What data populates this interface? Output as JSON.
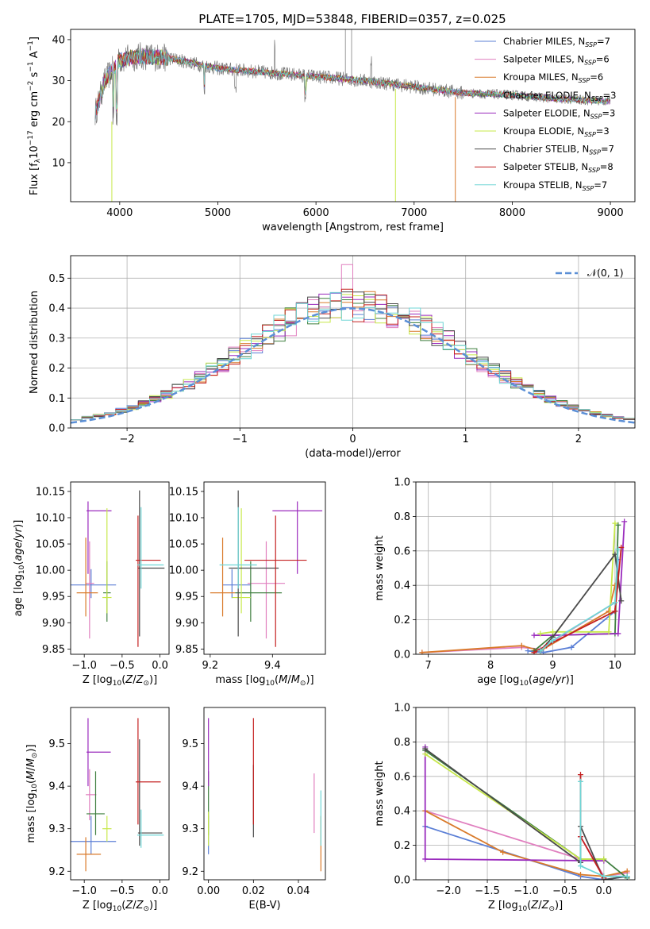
{
  "figure": {
    "title": "PLATE=1705, MJD=53848, FIBERID=0357, z=0.025"
  },
  "colors": {
    "Chabrier MILES": "#5b7fd6",
    "Salpeter MILES": "#e07fbf",
    "Kroupa MILES": "#d97a2a",
    "Chabrier ELODIE": "#3f7f3f",
    "Salpeter ELODIE": "#9a2bbd",
    "Kroupa ELODIE": "#c7e84a",
    "Chabrier STELIB": "#4a4a4a",
    "Salpeter STELIB": "#c42020",
    "Kroupa STELIB": "#6fd6d6",
    "Normal": "#5b8fd6",
    "grid": "#b0b0b0"
  },
  "chart_data": [
    {
      "id": "spectrum",
      "type": "line",
      "title": "PLATE=1705, MJD=53848, FIBERID=0357, z=0.025",
      "xlabel": "wavelength [Angstrom, rest frame]",
      "ylabel": "Flux [f_λ 10^-17 erg cm^-2 s^-1 A^-1]",
      "xlim": [
        3500,
        9250
      ],
      "ylim": [
        0.5,
        42.5
      ],
      "xticks": [
        4000,
        5000,
        6000,
        7000,
        8000,
        9000
      ],
      "yticks": [
        10,
        20,
        30,
        40
      ],
      "grid": false,
      "legend": "top-right",
      "legend_entries": [
        {
          "base": "Chabrier MILES, N",
          "sub": "SSP",
          "tail": "=7"
        },
        {
          "base": "Salpeter MILES, N",
          "sub": "SSP",
          "tail": "=6"
        },
        {
          "base": "Kroupa MILES, N",
          "sub": "SSP",
          "tail": "=6"
        },
        {
          "base": "Chabrier ELODIE, N",
          "sub": "SSP",
          "tail": "=3"
        },
        {
          "base": "Salpeter ELODIE, N",
          "sub": "SSP",
          "tail": "=3"
        },
        {
          "base": "Kroupa ELODIE, N",
          "sub": "SSP",
          "tail": "=3"
        },
        {
          "base": "Chabrier STELIB, N",
          "sub": "SSP",
          "tail": "=7"
        },
        {
          "base": "Salpeter STELIB, N",
          "sub": "SSP",
          "tail": "=8"
        },
        {
          "base": "Kroupa STELIB, N",
          "sub": "SSP",
          "tail": "=7"
        }
      ],
      "continuum": [
        [
          3750,
          22
        ],
        [
          3850,
          30
        ],
        [
          4000,
          35
        ],
        [
          4200,
          36
        ],
        [
          4500,
          35.5
        ],
        [
          5000,
          33
        ],
        [
          5500,
          32
        ],
        [
          6000,
          31
        ],
        [
          6500,
          30
        ],
        [
          7000,
          28.5
        ],
        [
          7500,
          27
        ],
        [
          8000,
          26.5
        ],
        [
          8500,
          25.5
        ],
        [
          9000,
          25
        ]
      ]
    },
    {
      "id": "residuals",
      "type": "step",
      "xlabel": "(data-model)/error",
      "ylabel": "Normed distribution",
      "xlim": [
        -2.5,
        2.5
      ],
      "ylim": [
        0,
        0.575
      ],
      "xticks": [
        -2,
        -1,
        0,
        1,
        2
      ],
      "yticks": [
        0.0,
        0.1,
        0.2,
        0.3,
        0.4,
        0.5
      ],
      "grid": true,
      "legend": "top-right",
      "legend_label": "𝒩(0, 1)",
      "bin_width": 0.1
    },
    {
      "id": "age_vs_Z",
      "type": "errorbar",
      "xlabel": "Z [log10(Z/Z☉)]",
      "ylabel": "age [log10(age/yr)]",
      "xlim": [
        -1.18,
        0.12
      ],
      "ylim": [
        9.84,
        10.168
      ],
      "xticks": [
        -1.0,
        -0.5,
        0.0
      ],
      "yticks": [
        9.85,
        9.9,
        9.95,
        10.0,
        10.05,
        10.1,
        10.15
      ],
      "points": [
        {
          "series": "Chabrier MILES",
          "x": -0.91,
          "y": 9.972,
          "xerr": [
            0.3,
            0.33
          ],
          "yerr": [
            0.025,
            0.03
          ]
        },
        {
          "series": "Salpeter MILES",
          "x": -0.93,
          "y": 9.975,
          "xerr": [
            0.05,
            0.06
          ],
          "yerr": [
            0.105,
            0.08
          ]
        },
        {
          "series": "Kroupa MILES",
          "x": -0.98,
          "y": 9.957,
          "xerr": [
            0.12,
            0.16
          ],
          "yerr": [
            0.045,
            0.105
          ]
        },
        {
          "series": "Chabrier ELODIE",
          "x": -0.7,
          "y": 9.957,
          "xerr": [
            0.05,
            0.05
          ],
          "yerr": [
            0.055,
            0.06
          ]
        },
        {
          "series": "Salpeter ELODIE",
          "x": -0.95,
          "y": 10.113,
          "xerr": [
            0.02,
            0.31
          ],
          "yerr": [
            0.12,
            0.018
          ]
        },
        {
          "series": "Kroupa ELODIE",
          "x": -0.7,
          "y": 9.948,
          "xerr": [
            0.06,
            0.06
          ],
          "yerr": [
            0.03,
            0.17
          ]
        },
        {
          "series": "Chabrier STELIB",
          "x": -0.27,
          "y": 10.004,
          "xerr": [
            0.02,
            0.33
          ],
          "yerr": [
            0.13,
            0.148
          ]
        },
        {
          "series": "Salpeter STELIB",
          "x": -0.29,
          "y": 10.019,
          "xerr": [
            0.03,
            0.3
          ],
          "yerr": [
            0.165,
            0.085
          ]
        },
        {
          "series": "Kroupa STELIB",
          "x": -0.25,
          "y": 10.01,
          "xerr": [
            0.05,
            0.3
          ],
          "yerr": [
            0.045,
            0.11
          ]
        }
      ]
    },
    {
      "id": "age_vs_mass",
      "type": "errorbar",
      "xlabel": "mass [log10(M/M☉)]",
      "ylabel": "",
      "xlim": [
        9.18,
        9.57
      ],
      "ylim": [
        9.84,
        10.168
      ],
      "xticks": [
        9.2,
        9.4
      ],
      "yticks": [
        9.85,
        9.9,
        9.95,
        10.0,
        10.05,
        10.1,
        10.15
      ],
      "points": [
        {
          "series": "Chabrier MILES",
          "x": 9.27,
          "y": 9.972,
          "xerr": [
            0.03,
            0.06
          ],
          "yerr": [
            0.025,
            0.03
          ]
        },
        {
          "series": "Salpeter MILES",
          "x": 9.38,
          "y": 9.975,
          "xerr": [
            0.06,
            0.06
          ],
          "yerr": [
            0.105,
            0.08
          ]
        },
        {
          "series": "Kroupa MILES",
          "x": 9.24,
          "y": 9.957,
          "xerr": [
            0.04,
            0.04
          ],
          "yerr": [
            0.045,
            0.105
          ]
        },
        {
          "series": "Chabrier ELODIE",
          "x": 9.33,
          "y": 9.957,
          "xerr": [
            0.05,
            0.1
          ],
          "yerr": [
            0.055,
            0.06
          ]
        },
        {
          "series": "Salpeter ELODIE",
          "x": 9.48,
          "y": 10.113,
          "xerr": [
            0.08,
            0.08
          ],
          "yerr": [
            0.12,
            0.018
          ]
        },
        {
          "series": "Kroupa ELODIE",
          "x": 9.3,
          "y": 9.948,
          "xerr": [
            0.03,
            0.03
          ],
          "yerr": [
            0.03,
            0.17
          ]
        },
        {
          "series": "Chabrier STELIB",
          "x": 9.29,
          "y": 10.004,
          "xerr": [
            0.03,
            0.13
          ],
          "yerr": [
            0.13,
            0.148
          ]
        },
        {
          "series": "Salpeter STELIB",
          "x": 9.41,
          "y": 10.019,
          "xerr": [
            0.1,
            0.1
          ],
          "yerr": [
            0.165,
            0.085
          ]
        },
        {
          "series": "Kroupa STELIB",
          "x": 9.29,
          "y": 10.01,
          "xerr": [
            0.06,
            0.06
          ],
          "yerr": [
            0.045,
            0.11
          ]
        }
      ]
    },
    {
      "id": "weight_vs_age",
      "type": "line",
      "xlabel": "age [log10(age/yr)]",
      "ylabel": "mass weight",
      "xlim": [
        6.8,
        10.32
      ],
      "ylim": [
        0.0,
        1.0
      ],
      "xticks": [
        7,
        8,
        9,
        10
      ],
      "yticks": [
        0.0,
        0.2,
        0.4,
        0.6,
        0.8,
        1.0
      ],
      "grid": true,
      "series": [
        {
          "name": "Chabrier MILES",
          "x": [
            8.6,
            8.85,
            9.3,
            10.0,
            10.05
          ],
          "y": [
            0.02,
            0.01,
            0.04,
            0.25,
            0.55
          ]
        },
        {
          "name": "Salpeter MILES",
          "x": [
            6.9,
            8.5,
            8.8,
            10.0,
            10.05
          ],
          "y": [
            0.01,
            0.04,
            0.03,
            0.3,
            0.4
          ]
        },
        {
          "name": "Kroupa MILES",
          "x": [
            6.9,
            8.5,
            8.8,
            9.9,
            10.0
          ],
          "y": [
            0.01,
            0.05,
            0.02,
            0.25,
            0.4
          ]
        },
        {
          "name": "Chabrier ELODIE",
          "x": [
            8.7,
            9.0,
            10.0,
            10.05
          ],
          "y": [
            0.02,
            0.11,
            0.12,
            0.75
          ]
        },
        {
          "name": "Salpeter ELODIE",
          "x": [
            8.7,
            9.0,
            10.05,
            10.15
          ],
          "y": [
            0.11,
            0.11,
            0.12,
            0.77
          ]
        },
        {
          "name": "Kroupa ELODIE",
          "x": [
            8.8,
            9.0,
            9.9,
            10.0
          ],
          "y": [
            0.12,
            0.13,
            0.13,
            0.76
          ]
        },
        {
          "name": "Chabrier STELIB",
          "x": [
            8.8,
            9.0,
            10.0,
            10.1
          ],
          "y": [
            0.02,
            0.1,
            0.58,
            0.31
          ]
        },
        {
          "name": "Salpeter STELIB",
          "x": [
            8.7,
            8.9,
            10.0,
            10.1
          ],
          "y": [
            0.01,
            0.05,
            0.25,
            0.62
          ]
        },
        {
          "name": "Kroupa STELIB",
          "x": [
            8.8,
            9.0,
            10.0,
            10.05
          ],
          "y": [
            0.02,
            0.08,
            0.3,
            0.61
          ]
        }
      ]
    },
    {
      "id": "mass_vs_Z",
      "type": "errorbar",
      "xlabel": "Z [log10(Z/Z☉)]",
      "ylabel": "mass [log10(M/M☉)]",
      "xlim": [
        -1.18,
        0.12
      ],
      "ylim": [
        9.18,
        9.585
      ],
      "xticks": [
        -1.0,
        -0.5,
        0.0
      ],
      "yticks": [
        9.2,
        9.3,
        9.4,
        9.5
      ],
      "points": [
        {
          "series": "Chabrier MILES",
          "x": -0.91,
          "y": 9.27,
          "xerr": [
            0.3,
            0.33
          ],
          "yerr": [
            0.03,
            0.06
          ]
        },
        {
          "series": "Salpeter MILES",
          "x": -0.93,
          "y": 9.38,
          "xerr": [
            0.05,
            0.09
          ],
          "yerr": [
            0.06,
            0.06
          ]
        },
        {
          "series": "Kroupa MILES",
          "x": -0.98,
          "y": 9.24,
          "xerr": [
            0.12,
            0.2
          ],
          "yerr": [
            0.04,
            0.04
          ]
        },
        {
          "series": "Chabrier ELODIE",
          "x": -0.85,
          "y": 9.335,
          "xerr": [
            0.12,
            0.12
          ],
          "yerr": [
            0.05,
            0.1
          ]
        },
        {
          "series": "Salpeter ELODIE",
          "x": -0.95,
          "y": 9.48,
          "xerr": [
            0.02,
            0.3
          ],
          "yerr": [
            0.08,
            0.08
          ]
        },
        {
          "series": "Kroupa ELODIE",
          "x": -0.7,
          "y": 9.3,
          "xerr": [
            0.06,
            0.06
          ],
          "yerr": [
            0.03,
            0.03
          ]
        },
        {
          "series": "Chabrier STELIB",
          "x": -0.27,
          "y": 9.29,
          "xerr": [
            0.02,
            0.3
          ],
          "yerr": [
            0.03,
            0.22
          ]
        },
        {
          "series": "Salpeter STELIB",
          "x": -0.29,
          "y": 9.41,
          "xerr": [
            0.03,
            0.3
          ],
          "yerr": [
            0.1,
            0.15
          ]
        },
        {
          "series": "Kroupa STELIB",
          "x": -0.25,
          "y": 9.285,
          "xerr": [
            0.05,
            0.3
          ],
          "yerr": [
            0.03,
            0.06
          ]
        }
      ]
    },
    {
      "id": "mass_vs_EBV",
      "type": "errorbar",
      "xlabel": "E(B-V)",
      "ylabel": "",
      "xlim": [
        -0.002,
        0.052
      ],
      "ylim": [
        9.18,
        9.585
      ],
      "xticks": [
        0.0,
        0.02,
        0.04
      ],
      "yticks": [
        9.2,
        9.3,
        9.4,
        9.5
      ],
      "points": [
        {
          "series": "Chabrier MILES",
          "x": 0.0,
          "y": 9.27,
          "xerr": [
            0,
            0
          ],
          "yerr": [
            0.03,
            0.06
          ]
        },
        {
          "series": "Salpeter MILES",
          "x": 0.047,
          "y": 9.38,
          "xerr": [
            0,
            0
          ],
          "yerr": [
            0.09,
            0.05
          ]
        },
        {
          "series": "Kroupa MILES",
          "x": 0.05,
          "y": 9.24,
          "xerr": [
            0,
            0
          ],
          "yerr": [
            0.04,
            0.09
          ]
        },
        {
          "series": "Chabrier ELODIE",
          "x": 0.0,
          "y": 9.335,
          "xerr": [
            0,
            0
          ],
          "yerr": [
            0.05,
            0.1
          ]
        },
        {
          "series": "Salpeter ELODIE",
          "x": 0.0,
          "y": 9.48,
          "xerr": [
            0,
            0
          ],
          "yerr": [
            0.08,
            0.08
          ]
        },
        {
          "series": "Kroupa ELODIE",
          "x": 0.0,
          "y": 9.3,
          "xerr": [
            0,
            0
          ],
          "yerr": [
            0.04,
            0.04
          ]
        },
        {
          "series": "Chabrier STELIB",
          "x": 0.02,
          "y": 9.35,
          "xerr": [
            0,
            0
          ],
          "yerr": [
            0.07,
            0.1
          ]
        },
        {
          "series": "Salpeter STELIB",
          "x": 0.02,
          "y": 9.41,
          "xerr": [
            0,
            0
          ],
          "yerr": [
            0.1,
            0.15
          ]
        },
        {
          "series": "Kroupa STELIB",
          "x": 0.05,
          "y": 9.31,
          "xerr": [
            0,
            0
          ],
          "yerr": [
            0.05,
            0.08
          ]
        }
      ]
    },
    {
      "id": "weight_vs_Z",
      "type": "line",
      "xlabel": "Z [log10(Z/Z☉)]",
      "ylabel": "mass weight",
      "xlim": [
        -2.42,
        0.4
      ],
      "ylim": [
        0.0,
        1.0
      ],
      "xticks": [
        -2.0,
        -1.5,
        -1.0,
        -0.5,
        0.0
      ],
      "yticks": [
        0.0,
        0.2,
        0.4,
        0.6,
        0.8,
        1.0
      ],
      "grid": true,
      "series": [
        {
          "name": "Chabrier MILES",
          "x": [
            -2.3,
            -0.3,
            0.0,
            0.3
          ],
          "y": [
            0.31,
            0.02,
            0.0,
            0.02
          ]
        },
        {
          "name": "Salpeter MILES",
          "x": [
            -2.3,
            -0.3,
            -0.3,
            0.0,
            0.3
          ],
          "y": [
            0.4,
            0.12,
            0.25,
            0.02,
            0.04
          ]
        },
        {
          "name": "Kroupa MILES",
          "x": [
            -2.3,
            -1.3,
            -0.3,
            0.0,
            0.3
          ],
          "y": [
            0.4,
            0.16,
            0.03,
            0.02,
            0.05
          ]
        },
        {
          "name": "Chabrier ELODIE",
          "x": [
            -2.3,
            -0.3,
            0.0,
            0.3
          ],
          "y": [
            0.75,
            0.12,
            0.12,
            0.01
          ]
        },
        {
          "name": "Salpeter ELODIE",
          "x": [
            -2.3,
            -2.3,
            0.0
          ],
          "y": [
            0.77,
            0.12,
            0.11
          ]
        },
        {
          "name": "Kroupa ELODIE",
          "x": [
            -2.3,
            -0.3,
            0.0
          ],
          "y": [
            0.73,
            0.12,
            0.12
          ]
        },
        {
          "name": "Chabrier STELIB",
          "x": [
            -2.3,
            -0.3,
            -0.3,
            0.0,
            0.3
          ],
          "y": [
            0.76,
            0.1,
            0.31,
            0.0,
            0.02
          ]
        },
        {
          "name": "Salpeter STELIB",
          "x": [
            -0.3,
            -0.3,
            0.0
          ],
          "y": [
            0.61,
            0.25,
            0.01
          ]
        },
        {
          "name": "Kroupa STELIB",
          "x": [
            -0.3,
            -0.3,
            0.0,
            0.3
          ],
          "y": [
            0.57,
            0.08,
            0.02,
            0.02
          ]
        }
      ]
    }
  ]
}
